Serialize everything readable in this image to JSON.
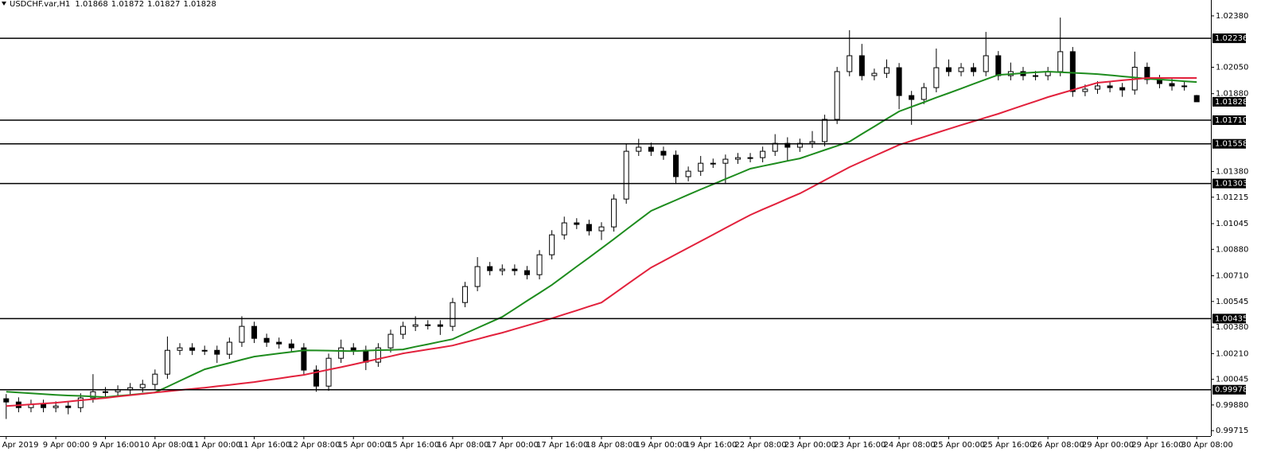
{
  "chart_data": {
    "type": "candlestick",
    "title": "USDCHF.var,H1",
    "categories": [
      "8 Apr 2019",
      null,
      null,
      null,
      "9 Apr 00:00",
      null,
      null,
      null,
      "9 Apr 16:00",
      null,
      null,
      null,
      "10 Apr 08:00",
      null,
      null,
      null,
      "11 Apr 00:00",
      null,
      null,
      null,
      "11 Apr 16:00",
      null,
      null,
      null,
      "12 Apr 08:00",
      null,
      null,
      null,
      "15 Apr 00:00",
      null,
      null,
      null,
      "15 Apr 16:00",
      null,
      null,
      null,
      "16 Apr 08:00",
      null,
      null,
      null,
      "17 Apr 00:00",
      null,
      null,
      null,
      "17 Apr 16:00",
      null,
      null,
      null,
      "18 Apr 08:00",
      null,
      null,
      null,
      "19 Apr 00:00",
      null,
      null,
      null,
      "19 Apr 16:00",
      null,
      null,
      null,
      "22 Apr 08:00",
      null,
      null,
      null,
      "23 Apr 00:00",
      null,
      null,
      null,
      "23 Apr 16:00",
      null,
      null,
      null,
      "24 Apr 08:00",
      null,
      null,
      null,
      "25 Apr 00:00",
      null,
      null,
      null,
      "25 Apr 16:00",
      null,
      null,
      null,
      "26 Apr 08:00",
      null,
      null,
      null,
      "29 Apr 00:00",
      null,
      null,
      null,
      "29 Apr 16:00",
      null,
      null,
      null,
      "30 Apr 08:00"
    ],
    "open": [
      0.9992,
      0.99899,
      0.99863,
      0.99884,
      0.99863,
      0.99873,
      0.99863,
      0.99925,
      0.99965,
      0.99965,
      0.99976,
      0.99991,
      1.00012,
      1.00078,
      1.00231,
      1.00247,
      1.00231,
      1.00231,
      1.00206,
      1.00283,
      1.00385,
      1.00308,
      1.00283,
      1.00272,
      1.00247,
      1.00104,
      1.00001,
      1.0018,
      1.00247,
      1.00231,
      1.00155,
      1.00247,
      1.00334,
      1.00385,
      1.00395,
      1.00395,
      1.00385,
      1.00538,
      1.00641,
      1.00769,
      1.00743,
      1.00753,
      1.00743,
      1.00717,
      1.00845,
      1.00973,
      1.0105,
      1.0104,
      1.00999,
      1.01024,
      1.01203,
      1.0151,
      1.01536,
      1.0151,
      1.01485,
      1.01347,
      1.01382,
      1.01433,
      1.01433,
      1.01459,
      1.01469,
      1.01469,
      1.0151,
      1.01561,
      1.01536,
      1.01561,
      1.01572,
      1.01715,
      1.02022,
      1.02124,
      1.01996,
      1.02011,
      1.02047,
      1.01868,
      1.01843,
      1.01919,
      1.02047,
      1.02022,
      1.02047,
      1.02022,
      1.02124,
      1.01996,
      1.02022,
      1.01996,
      1.01996,
      1.02022,
      1.0215,
      1.01894,
      1.01909,
      1.0193,
      1.01919,
      1.01904,
      1.0205,
      1.01971,
      1.01945,
      1.0193,
      1.01868
    ],
    "high": [
      0.9995,
      0.99929,
      0.99914,
      0.99914,
      0.99903,
      0.99903,
      0.99955,
      1.00078,
      0.99995,
      1.00006,
      1.00021,
      1.00042,
      1.00108,
      1.0032,
      1.00277,
      1.00277,
      1.00261,
      1.00261,
      1.00313,
      1.0045,
      1.00415,
      1.00338,
      1.00313,
      1.00302,
      1.00277,
      1.00134,
      1.0021,
      1.003,
      1.00277,
      1.00261,
      1.00277,
      1.00364,
      1.00415,
      1.0045,
      1.00425,
      1.00425,
      1.00568,
      1.00671,
      1.0083,
      1.00799,
      1.00783,
      1.00783,
      1.00773,
      1.00875,
      1.01003,
      1.0109,
      1.0108,
      1.0107,
      1.01054,
      1.01233,
      1.0156,
      1.0159,
      1.01566,
      1.0154,
      1.01515,
      1.01412,
      1.0148,
      1.01463,
      1.01489,
      1.01499,
      1.01499,
      1.0154,
      1.0162,
      1.016,
      1.01591,
      1.0164,
      1.01745,
      1.02052,
      1.02288,
      1.022,
      1.02041,
      1.021,
      1.02077,
      1.01898,
      1.01949,
      1.0217,
      1.021,
      1.02077,
      1.02077,
      1.02277,
      1.02154,
      1.0208,
      1.02052,
      1.02026,
      1.02052,
      1.02369,
      1.0218,
      1.01939,
      1.0196,
      1.0196,
      1.01949,
      1.0215,
      1.0208,
      1.02001,
      1.01975,
      1.0196,
      1.01872
    ],
    "low": [
      0.9979,
      0.99833,
      0.99833,
      0.99833,
      0.99833,
      0.9982,
      0.99833,
      0.99895,
      0.99935,
      0.99935,
      0.99946,
      0.99961,
      0.99982,
      1.00048,
      1.00201,
      1.00201,
      1.00201,
      1.0015,
      1.00176,
      1.00253,
      1.00278,
      1.00253,
      1.00242,
      1.00217,
      1.00074,
      0.99965,
      0.99971,
      1.0015,
      1.00201,
      1.00104,
      1.00125,
      1.00217,
      1.00304,
      1.00355,
      1.00365,
      1.0033,
      1.00355,
      1.00508,
      1.00611,
      1.00713,
      1.00713,
      1.00713,
      1.00687,
      1.00687,
      1.00815,
      1.00943,
      1.0101,
      1.00969,
      1.0094,
      1.00994,
      1.01173,
      1.0148,
      1.0148,
      1.01455,
      1.013,
      1.01317,
      1.01352,
      1.01403,
      1.013,
      1.01429,
      1.01439,
      1.01439,
      1.0148,
      1.0145,
      1.01506,
      1.01531,
      1.01542,
      1.01685,
      1.01992,
      1.01966,
      1.01966,
      1.01981,
      1.0178,
      1.0168,
      1.01813,
      1.01889,
      1.01992,
      1.01992,
      1.01992,
      1.01992,
      1.01966,
      1.01966,
      1.01966,
      1.01966,
      1.01966,
      1.01992,
      1.0186,
      1.01864,
      1.01879,
      1.01889,
      1.0186,
      1.01874,
      1.01941,
      1.01915,
      1.019,
      1.019,
      1.01827
    ],
    "close": [
      0.99899,
      0.99863,
      0.99884,
      0.99863,
      0.99873,
      0.99863,
      0.99925,
      0.99965,
      0.99965,
      0.99976,
      0.99991,
      1.00012,
      1.00078,
      1.00231,
      1.00247,
      1.00231,
      1.00231,
      1.00206,
      1.00283,
      1.00385,
      1.00308,
      1.00283,
      1.00272,
      1.00247,
      1.00104,
      1.00001,
      1.0018,
      1.00247,
      1.00231,
      1.00155,
      1.00247,
      1.00334,
      1.00385,
      1.00395,
      1.00395,
      1.00385,
      1.00538,
      1.00641,
      1.00769,
      1.00743,
      1.00753,
      1.00743,
      1.00717,
      1.00845,
      1.00973,
      1.0105,
      1.0104,
      1.00999,
      1.01024,
      1.01203,
      1.0151,
      1.01536,
      1.0151,
      1.01485,
      1.01347,
      1.01382,
      1.01433,
      1.01433,
      1.01459,
      1.01469,
      1.01469,
      1.0151,
      1.01561,
      1.01536,
      1.01561,
      1.01572,
      1.01715,
      1.02022,
      1.02124,
      1.01996,
      1.02011,
      1.02047,
      1.01868,
      1.01843,
      1.01919,
      1.02047,
      1.02022,
      1.02047,
      1.02022,
      1.02124,
      1.01996,
      1.02022,
      1.01996,
      1.01996,
      1.02022,
      1.0215,
      1.01894,
      1.01909,
      1.0193,
      1.01919,
      1.01904,
      1.0205,
      1.01971,
      1.01945,
      1.0193,
      1.0193,
      1.01828
    ],
    "lines": [
      {
        "color": "#1e8c1e",
        "values": [
          0.99965,
          0.9996,
          0.99955,
          0.9995,
          0.99945,
          0.99941,
          0.99938,
          0.99934,
          0.9993,
          0.99938,
          0.99945,
          0.99953,
          0.9996,
          0.99997,
          1.00035,
          1.00072,
          1.00109,
          1.0013,
          1.0015,
          1.00171,
          1.00191,
          1.00201,
          1.00211,
          1.00221,
          1.00231,
          1.0023,
          1.00229,
          1.00227,
          1.00226,
          1.00229,
          1.00232,
          1.00234,
          1.00237,
          1.00254,
          1.0027,
          1.00287,
          1.00303,
          1.00339,
          1.00375,
          1.0041,
          1.00446,
          1.00497,
          1.00549,
          1.006,
          1.00651,
          1.0071,
          1.00769,
          1.00827,
          1.00886,
          1.00946,
          1.01007,
          1.01067,
          1.01127,
          1.01162,
          1.01196,
          1.01231,
          1.01265,
          1.01298,
          1.01332,
          1.01365,
          1.01398,
          1.01415,
          1.01431,
          1.01448,
          1.01464,
          1.01491,
          1.01518,
          1.01545,
          1.01572,
          1.01621,
          1.01669,
          1.01718,
          1.01766,
          1.01796,
          1.01825,
          1.01855,
          1.01884,
          1.01913,
          1.01943,
          1.01972,
          1.02001,
          1.02006,
          1.02012,
          1.02017,
          1.02022,
          1.02018,
          1.02014,
          1.0201,
          1.02006,
          1.01999,
          1.01991,
          1.01984,
          1.01976,
          1.01971,
          1.01966,
          1.0196,
          1.01955
        ]
      },
      {
        "color": "#e2213c",
        "values": [
          0.99873,
          0.99878,
          0.99884,
          0.99889,
          0.99894,
          0.99902,
          0.9991,
          0.99917,
          0.99925,
          0.99934,
          0.99943,
          0.99951,
          0.9996,
          0.99968,
          0.99976,
          0.99983,
          0.99991,
          1,
          1.00009,
          1.00018,
          1.00027,
          1.00039,
          1.0005,
          1.00062,
          1.00073,
          1.0009,
          1.00107,
          1.00123,
          1.0014,
          1.00158,
          1.00176,
          1.00193,
          1.00211,
          1.00224,
          1.00237,
          1.00249,
          1.00262,
          1.00283,
          1.00303,
          1.00324,
          1.00344,
          1.00367,
          1.0039,
          1.00413,
          1.00436,
          1.00462,
          1.00487,
          1.00513,
          1.00538,
          1.00594,
          1.00651,
          1.00707,
          1.00763,
          1.00805,
          1.00848,
          1.0089,
          1.00932,
          1.00974,
          1.01017,
          1.01059,
          1.01101,
          1.01136,
          1.0117,
          1.01205,
          1.01239,
          1.01281,
          1.01324,
          1.01366,
          1.01408,
          1.01444,
          1.0148,
          1.01515,
          1.01551,
          1.01577,
          1.01602,
          1.01628,
          1.01653,
          1.01678,
          1.01702,
          1.01727,
          1.01751,
          1.01778,
          1.01805,
          1.01831,
          1.01858,
          1.01881,
          1.01904,
          1.01927,
          1.0195,
          1.01958,
          1.01966,
          1.01973,
          1.01981,
          1.01981,
          1.01981,
          1.01981,
          1.01981
        ]
      }
    ],
    "levels": [
      1.02236,
      {
        "value": 1.0171,
        "label": "1.01710"
      },
      1.01558,
      1.01303,
      1.00435,
      0.99978
    ],
    "level_color": "#000000",
    "candle_color": "#000000",
    "ylim": [
      0.9968,
      1.02482
    ],
    "yticks": [
      {
        "value": 1.0238,
        "label": "1.02380"
      },
      {
        "value": 1.0205,
        "label": "1.02050"
      },
      {
        "value": 1.0188,
        "label": "1.01880"
      },
      {
        "value": 1.0138,
        "label": "1.01380"
      },
      1.01215,
      1.01045,
      {
        "value": 1.0088,
        "label": "1.00880"
      },
      {
        "value": 1.0071,
        "label": "1.00710"
      },
      1.00545,
      {
        "value": 1.0038,
        "label": "1.00380"
      },
      {
        "value": 1.0021,
        "label": "1.00210"
      },
      1.00045,
      {
        "value": 0.9988,
        "label": "0.99880"
      },
      0.99715
    ]
  }
}
